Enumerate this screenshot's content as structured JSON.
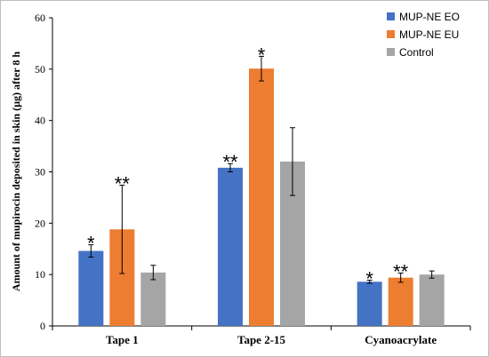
{
  "chart_data": {
    "type": "bar",
    "title": "",
    "xlabel": "",
    "ylabel": "Amount of mupirocin deposited in skin (µg) after 8 h",
    "ylim": [
      0,
      60
    ],
    "yticks": [
      0,
      10,
      20,
      30,
      40,
      50,
      60
    ],
    "grid": false,
    "legend_position": "top-right",
    "categories": [
      "Tape 1",
      "Tape 2-15",
      "Cyanoacrylate"
    ],
    "series": [
      {
        "name": "MUP-NE EO",
        "color": "#4472c4",
        "values": [
          14.6,
          30.8,
          8.6
        ],
        "errors": [
          1.2,
          0.8,
          0.3
        ],
        "significance": [
          "*",
          "**",
          "*"
        ]
      },
      {
        "name": "MUP-NE EU",
        "color": "#ed7d31",
        "values": [
          18.8,
          50.1,
          9.4
        ],
        "errors": [
          8.6,
          2.4,
          0.9
        ],
        "significance": [
          "**",
          "*",
          "**"
        ]
      },
      {
        "name": "Control",
        "color": "#a5a5a5",
        "values": [
          10.4,
          32.0,
          10.0
        ],
        "errors": [
          1.4,
          6.6,
          0.7
        ],
        "significance": [
          "",
          "",
          ""
        ]
      }
    ]
  }
}
